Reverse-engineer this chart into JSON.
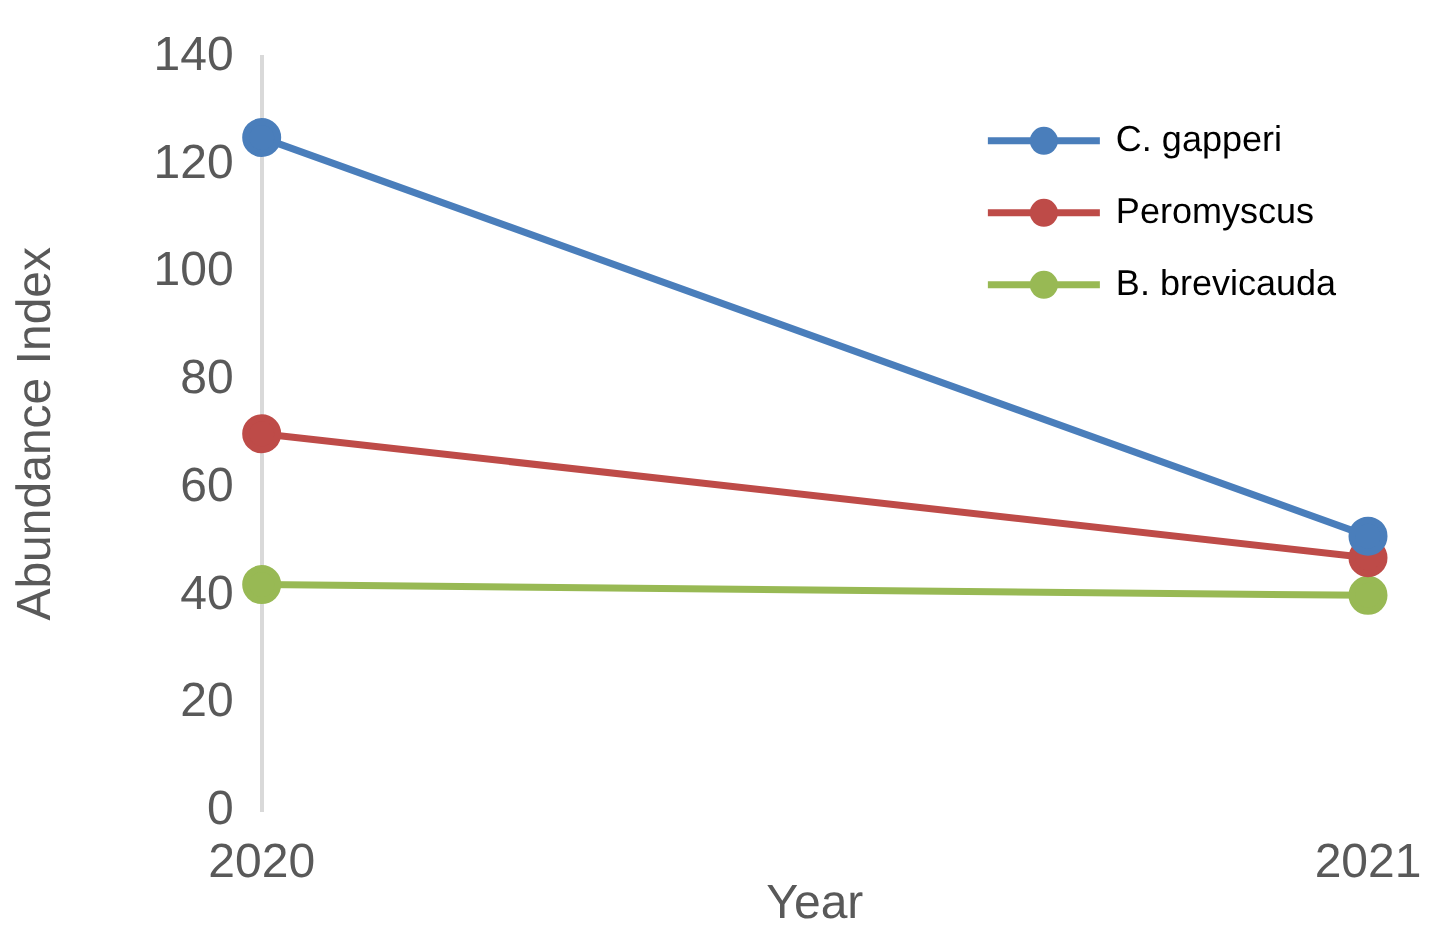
{
  "chart_data": {
    "type": "line",
    "xlabel": "Year",
    "ylabel": "Abundance Index",
    "x": [
      2020,
      2021
    ],
    "series": [
      {
        "name": "C. gapperi",
        "color": "#4a7ebb",
        "values": [
          125,
          51
        ]
      },
      {
        "name": "Peromyscus",
        "color": "#be4b48",
        "values": [
          70,
          47
        ]
      },
      {
        "name": "B. brevicauda",
        "color": "#98b954",
        "values": [
          42,
          40
        ]
      }
    ],
    "xlim": [
      2020,
      2021
    ],
    "xticks": [
      2020,
      2021
    ],
    "ylim": [
      0,
      140
    ],
    "yticks": [
      0,
      20,
      40,
      60,
      80,
      100,
      120,
      140
    ],
    "grid": false,
    "legend": "top right",
    "marker": "circle",
    "line_style": "solid"
  }
}
